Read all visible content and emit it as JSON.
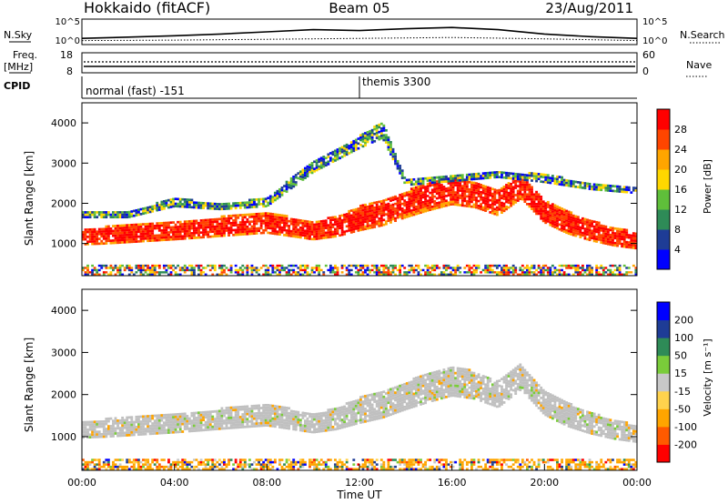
{
  "header": {
    "station": "Hokkaido (fitACF)",
    "beam": "Beam 05",
    "date": "23/Aug/2011"
  },
  "left_labels": {
    "nsky": "N.Sky",
    "freq_line1": "Freq.",
    "freq_line2": "[MHz]",
    "cpid": "CPID"
  },
  "right_labels": {
    "nsearch": "N.Search",
    "nave": "Nave"
  },
  "colors": {
    "power_scale": [
      "#0000ff",
      "#1e3c96",
      "#2e8b57",
      "#5fbf3a",
      "#ffd700",
      "#ffa500",
      "#ff4500",
      "#ff0000"
    ],
    "velocity_scale": [
      "#ff0000",
      "#ff5a00",
      "#ffa500",
      "#ffd24d",
      "#c8c8c8",
      "#7acc3a",
      "#2e8b57",
      "#1e3c96",
      "#0000ff"
    ],
    "ground_scatter": "#c0c0c0"
  },
  "chart_data": [
    {
      "type": "line",
      "name": "noise-panel",
      "left_ticks": [
        "10^5",
        "10^0"
      ],
      "right_ticks": [
        "10^5",
        "10^0"
      ],
      "series": [
        {
          "name": "N.Sky",
          "x": [
            0,
            2,
            4,
            6,
            8,
            10,
            12,
            14,
            16,
            18,
            20,
            22,
            24
          ],
          "y": [
            1.0,
            1.3,
            1.6,
            2.0,
            2.5,
            3.0,
            2.8,
            3.2,
            3.5,
            3.0,
            2.0,
            1.4,
            1.0
          ]
        },
        {
          "name": "N.Search",
          "x": [
            0,
            4,
            8,
            12,
            16,
            20,
            24
          ],
          "y": [
            0.5,
            0.6,
            0.8,
            1.0,
            1.2,
            0.9,
            0.5
          ]
        }
      ]
    },
    {
      "type": "line",
      "name": "freq-nave-panel",
      "left_ticks": [
        "18",
        "8"
      ],
      "right_ticks": [
        "60",
        "0"
      ],
      "series": [
        {
          "name": "Freq.",
          "x": [
            0,
            24
          ],
          "y": [
            11,
            11
          ]
        },
        {
          "name": "Nave",
          "x": [
            0,
            24
          ],
          "y": [
            20,
            20
          ]
        }
      ]
    },
    {
      "type": "table",
      "name": "cpid-panel",
      "segments": [
        {
          "start_hour": 0,
          "end_hour": 12,
          "label": "normal (fast) -151"
        },
        {
          "start_hour": 12,
          "end_hour": 24,
          "label": "themis 3300"
        }
      ]
    },
    {
      "type": "heatmap",
      "name": "power",
      "ylabel": "Slant Range [km]",
      "ylim": [
        200,
        4500
      ],
      "yticks": [
        "1000",
        "2000",
        "3000",
        "4000"
      ],
      "xlim": [
        0,
        24
      ],
      "colorbar_label": "Power [dB]",
      "colorbar_ticks": [
        "4",
        "8",
        "12",
        "16",
        "20",
        "24",
        "28"
      ],
      "bands": [
        {
          "x": [
            0,
            1,
            2,
            3,
            4,
            5,
            6,
            7,
            8,
            9,
            10,
            11,
            12,
            13,
            14,
            15,
            16,
            17,
            18,
            19,
            20,
            21,
            22,
            23,
            24
          ],
          "center": [
            1150,
            1180,
            1220,
            1260,
            1300,
            1350,
            1400,
            1450,
            1500,
            1400,
            1300,
            1400,
            1600,
            1750,
            1950,
            2150,
            2300,
            2200,
            2000,
            2400,
            1800,
            1500,
            1300,
            1150,
            1050
          ],
          "width": [
            400,
            420,
            430,
            440,
            450,
            470,
            480,
            500,
            520,
            480,
            450,
            500,
            600,
            650,
            650,
            700,
            700,
            650,
            650,
            600,
            600,
            550,
            500,
            450,
            400
          ],
          "level": 27
        },
        {
          "x": [
            2,
            4,
            6,
            8,
            10,
            12,
            13,
            14,
            16,
            18,
            20,
            22,
            24
          ],
          "center": [
            1700,
            2000,
            1900,
            2000,
            2900,
            3500,
            3800,
            2500,
            2600,
            2700,
            2600,
            2400,
            2300
          ],
          "width": [
            150,
            200,
            150,
            200,
            300,
            300,
            400,
            150,
            150,
            150,
            200,
            150,
            150
          ],
          "level": 9
        }
      ]
    },
    {
      "type": "heatmap",
      "name": "velocity",
      "ylabel": "Slant Range [km]",
      "ylim": [
        200,
        4500
      ],
      "yticks": [
        "1000",
        "2000",
        "3000",
        "4000"
      ],
      "xlim": [
        0,
        24
      ],
      "xticks": [
        "00:00",
        "04:00",
        "08:00",
        "12:00",
        "16:00",
        "20:00",
        "00:00"
      ],
      "xlabel": "Time UT",
      "colorbar_label": "Velocity [m s⁻¹]",
      "colorbar_ticks": [
        "-200",
        "-100",
        "-50",
        "-15",
        "15",
        "50",
        "100",
        "200"
      ],
      "bands": [
        {
          "x": [
            0,
            1,
            2,
            3,
            4,
            5,
            6,
            7,
            8,
            9,
            10,
            11,
            12,
            13,
            14,
            15,
            16,
            17,
            18,
            19,
            20,
            21,
            22,
            23,
            24
          ],
          "center": [
            1150,
            1180,
            1220,
            1260,
            1300,
            1350,
            1400,
            1450,
            1500,
            1400,
            1300,
            1400,
            1600,
            1750,
            1950,
            2150,
            2300,
            2200,
            2000,
            2400,
            1800,
            1500,
            1300,
            1150,
            1050
          ],
          "width": [
            400,
            420,
            430,
            440,
            450,
            470,
            480,
            500,
            520,
            480,
            450,
            500,
            600,
            650,
            650,
            700,
            700,
            650,
            650,
            600,
            600,
            550,
            500,
            450,
            400
          ],
          "level": 0
        }
      ]
    }
  ]
}
